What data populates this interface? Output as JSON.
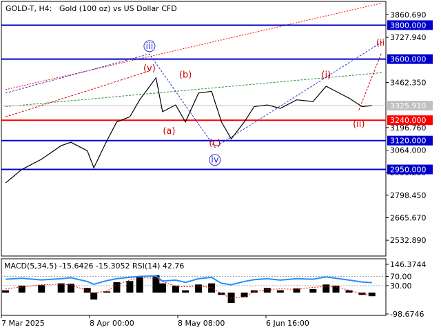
{
  "header": {
    "symbol": "GOLD-T, H4:",
    "description": "Gold (100 oz) vs US Dollar CFD"
  },
  "colors": {
    "level_blue": "#0000cc",
    "level_red": "#ff0000",
    "wave_blue": "#3333cc",
    "wave_red": "#cc0000",
    "price_line": "#000000",
    "bid_tag": "#c0c0c0",
    "macd_hist": "#000000",
    "rsi_line": "#1e90ff",
    "macd_signal": "#ff0000"
  },
  "chart_data": [
    {
      "type": "line",
      "title": "GOLD-T, H4:  Gold (100 oz) vs US Dollar CFD",
      "ylim": [
        2440,
        3940
      ],
      "y_ticks": [
        "3860.690",
        "3727.940",
        "3462.350",
        "3196.760",
        "3064.000",
        "2931.230",
        "2798.450",
        "2665.670",
        "2532.890"
      ],
      "x_ticks": [
        "7 Mar 2025",
        "8 Apr 00:00",
        "8 May 08:00",
        "6 Jun 16:00"
      ],
      "x_range": [
        "2025-03-07",
        "2025-06-30"
      ],
      "price_series": {
        "name": "",
        "x": [
          "2025-03-07",
          "2025-03-12",
          "2025-03-18",
          "2025-03-24",
          "2025-03-27",
          "2025-04-01",
          "2025-04-03",
          "2025-04-07",
          "2025-04-10",
          "2025-04-14",
          "2025-04-17",
          "2025-04-22",
          "2025-04-24",
          "2025-04-28",
          "2025-05-01",
          "2025-05-05",
          "2025-05-09",
          "2025-05-12",
          "2025-05-15",
          "2025-05-19",
          "2025-05-22",
          "2025-05-26",
          "2025-05-30",
          "2025-06-04",
          "2025-06-09",
          "2025-06-13",
          "2025-06-16",
          "2025-06-20",
          "2025-06-24",
          "2025-06-27"
        ],
        "y": [
          2870,
          2950,
          3010,
          3090,
          3110,
          3060,
          2960,
          3120,
          3230,
          3260,
          3360,
          3490,
          3290,
          3330,
          3230,
          3400,
          3410,
          3230,
          3130,
          3230,
          3320,
          3330,
          3310,
          3360,
          3350,
          3440,
          3410,
          3370,
          3320,
          3326
        ]
      },
      "levels": [
        {
          "label": "3800.000",
          "value": 3800,
          "color": "blue"
        },
        {
          "label": "3600.000",
          "value": 3600,
          "color": "blue"
        },
        {
          "label": "3240.000",
          "value": 3240,
          "color": "red"
        },
        {
          "label": "3120.000",
          "value": 3120,
          "color": "blue"
        },
        {
          "label": "2950.000",
          "value": 2950,
          "color": "blue"
        }
      ],
      "bid": {
        "label": "3325.910",
        "value": 3325.91
      },
      "wave_labels": [
        {
          "text": "iii",
          "x": "2025-04-20",
          "y": 3660,
          "color": "blue",
          "circled": true
        },
        {
          "text": "(v)",
          "x": "2025-04-20",
          "y": 3530,
          "color": "red",
          "circled": false
        },
        {
          "text": "(b)",
          "x": "2025-05-01",
          "y": 3490,
          "color": "red",
          "circled": false
        },
        {
          "text": "(a)",
          "x": "2025-04-26",
          "y": 3160,
          "color": "red",
          "circled": false
        },
        {
          "text": "(c)",
          "x": "2025-05-10",
          "y": 3090,
          "color": "red",
          "circled": false
        },
        {
          "text": "iv",
          "x": "2025-05-10",
          "y": 2990,
          "color": "blue",
          "circled": true
        },
        {
          "text": "(i)",
          "x": "2025-06-13",
          "y": 3490,
          "color": "red",
          "circled": false
        },
        {
          "text": "(ii)",
          "x": "2025-06-23",
          "y": 3200,
          "color": "red",
          "circled": false
        },
        {
          "text": "(ii",
          "x": "2025-06-30",
          "y": 3680,
          "color": "red",
          "circled": false
        }
      ],
      "wave_paths": [
        {
          "color": "blue",
          "dash": "3,2",
          "points": [
            [
              "2025-03-07",
              3400
            ],
            [
              "2025-04-20",
              3630
            ],
            [
              "2025-05-10",
              3080
            ],
            [
              "2025-06-30",
              3700
            ]
          ]
        },
        {
          "color": "red",
          "dash": "3,2",
          "points": [
            [
              "2025-03-07",
              3260
            ],
            [
              "2025-04-20",
              3530
            ]
          ]
        },
        {
          "color": "red",
          "dash": "3,2",
          "points": [
            [
              "2025-06-23",
              3300
            ],
            [
              "2025-06-30",
              3640
            ]
          ]
        }
      ],
      "trend_lines": [
        {
          "color": "red",
          "dash": "2,2",
          "points": [
            [
              "2025-03-07",
              3420
            ],
            [
              "2025-06-30",
              3930
            ]
          ]
        },
        {
          "color": "green",
          "dash": "3,2",
          "points": [
            [
              "2025-03-07",
              3320
            ],
            [
              "2025-06-30",
              3520
            ]
          ]
        }
      ]
    },
    {
      "type": "line",
      "title": "MACD(5,34,5) -15.6426 -15.3052 RSI(14) 42.76",
      "y_ticks": [
        "146.3744",
        "70.00",
        "30.00",
        "-98.6746"
      ],
      "ylim": [
        -98.6746,
        146.3744
      ],
      "series": [
        {
          "name": "RSI(14)",
          "values": [
            58,
            62,
            55,
            60,
            64,
            48,
            36,
            52,
            60,
            66,
            70,
            72,
            50,
            54,
            44,
            60,
            66,
            40,
            34,
            48,
            56,
            60,
            54,
            60,
            58,
            68,
            62,
            54,
            46,
            43
          ]
        },
        {
          "name": "MACD(5,34,5)",
          "values": [
            10,
            30,
            32,
            40,
            38,
            20,
            -30,
            5,
            45,
            50,
            70,
            75,
            40,
            30,
            10,
            35,
            40,
            -10,
            -45,
            -20,
            10,
            20,
            10,
            18,
            15,
            35,
            30,
            10,
            -10,
            -15.6426
          ]
        }
      ],
      "indicator_values": {
        "macd_main": "-15.6426",
        "macd_signal": "-15.3052",
        "rsi": "42.76"
      }
    }
  ]
}
